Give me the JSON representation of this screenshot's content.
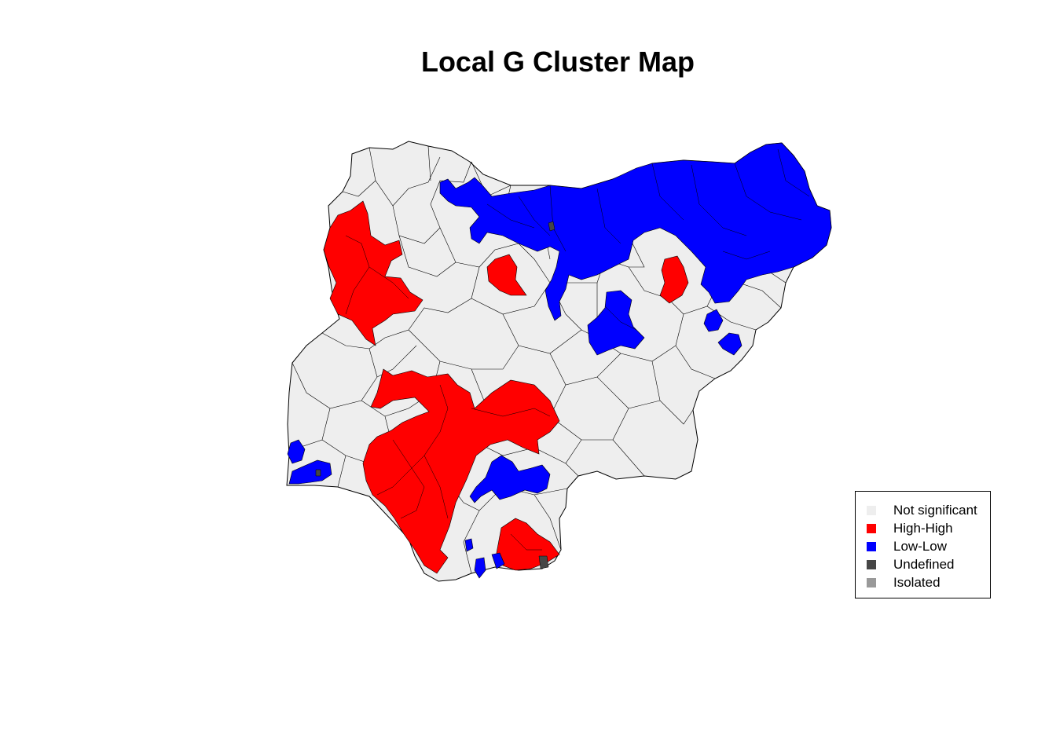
{
  "title": "Local G Cluster Map",
  "colors": {
    "not_significant": "#eeeeee",
    "high_high": "#ff0000",
    "low_low": "#0000ff",
    "undefined": "#464646",
    "isolated": "#999999",
    "boundary": "#000000"
  },
  "legend": {
    "items": [
      {
        "label": "Not significant",
        "color": "#eeeeee"
      },
      {
        "label": "High-High",
        "color": "#ff0000"
      },
      {
        "label": "Low-Low",
        "color": "#0000ff"
      },
      {
        "label": "Undefined",
        "color": "#464646"
      },
      {
        "label": "Isolated",
        "color": "#999999"
      }
    ]
  }
}
